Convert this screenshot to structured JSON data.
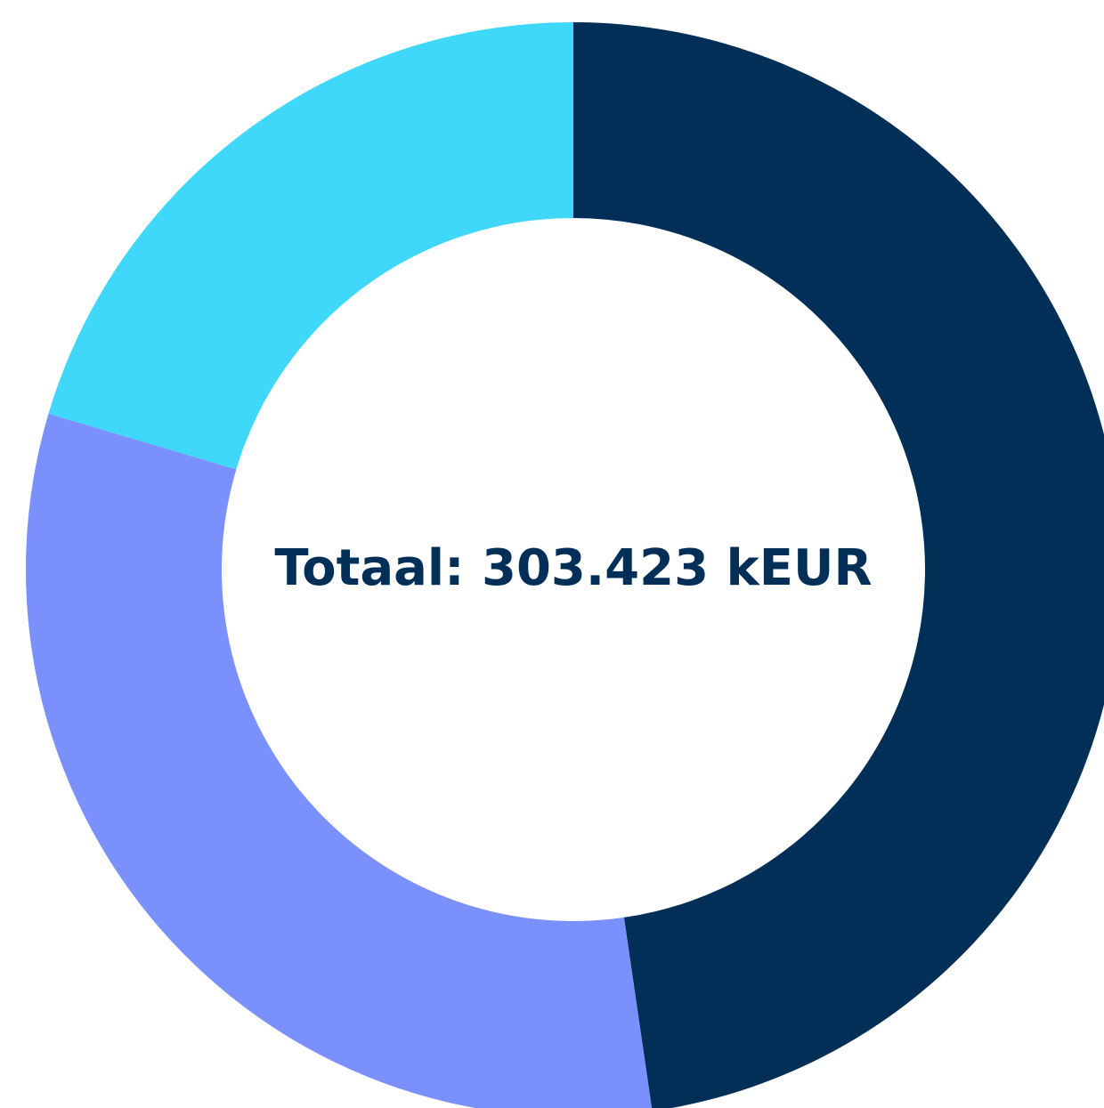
{
  "chart_data": {
    "type": "donut",
    "values": [
      47.7,
      31.9,
      20.4
    ],
    "colors": [
      "#012f57",
      "#7a91fd",
      "#40d8fa"
    ],
    "center_label": "Totaal: 303.423 kEUR"
  }
}
